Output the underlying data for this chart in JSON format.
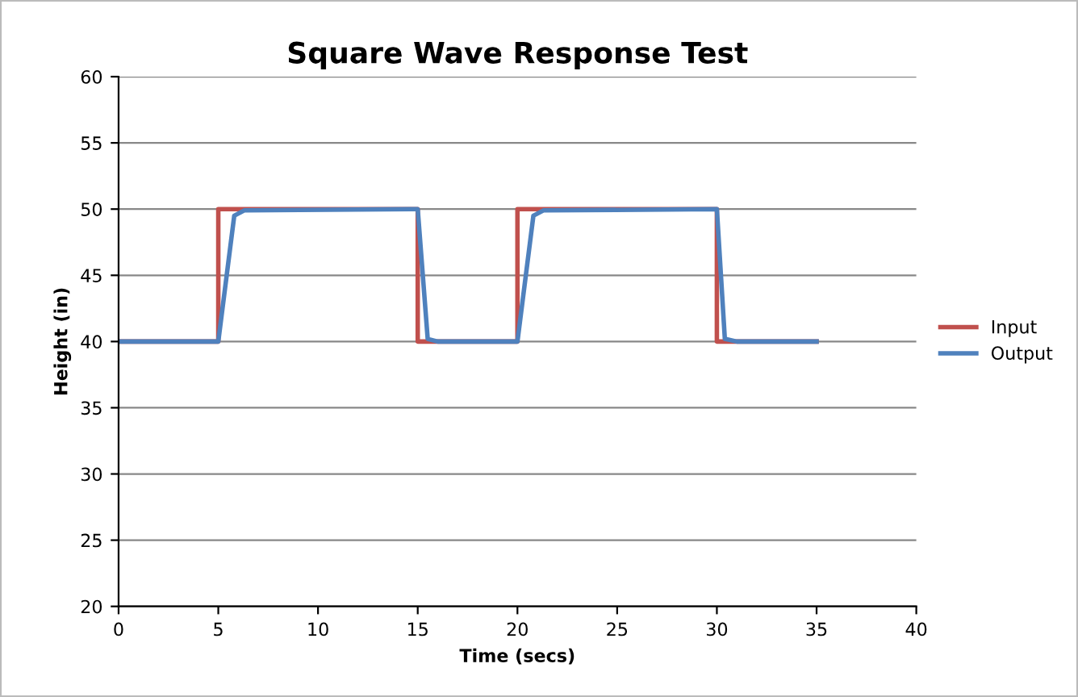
{
  "chart_data": {
    "type": "line",
    "title": "Square Wave Response Test",
    "xlabel": "Time (secs)",
    "ylabel": "Height (in)",
    "xlim": [
      0,
      40
    ],
    "xticks": [
      0,
      5,
      10,
      15,
      20,
      25,
      30,
      35,
      40
    ],
    "ylim": [
      20,
      60
    ],
    "yticks": [
      20,
      25,
      30,
      35,
      40,
      45,
      50,
      55,
      60
    ],
    "grid": "y",
    "legend": "right",
    "marker": "none",
    "line_style": "solid",
    "series": [
      {
        "name": "Input",
        "color": "#c0504d",
        "x": [
          0,
          5,
          5,
          15,
          15,
          20,
          20,
          30,
          30,
          35
        ],
        "values": [
          40,
          40,
          50,
          50,
          40,
          40,
          50,
          50,
          40,
          40
        ]
      },
      {
        "name": "Output",
        "color": "#4f81bd",
        "x": [
          0,
          5,
          5.8,
          6.3,
          15,
          15.5,
          16,
          20,
          20.8,
          21.3,
          30,
          30.4,
          31,
          35
        ],
        "values": [
          40,
          40,
          49.5,
          49.9,
          50,
          40.2,
          40,
          40,
          49.5,
          49.9,
          50,
          40.2,
          40,
          40
        ]
      }
    ]
  }
}
